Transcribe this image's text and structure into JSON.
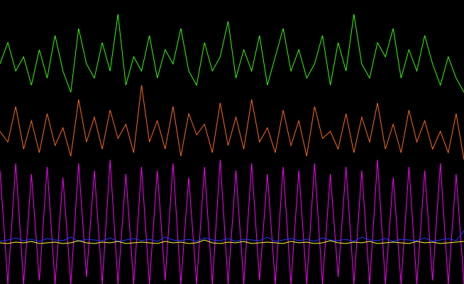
{
  "chart_data": {
    "type": "line",
    "x": [
      0,
      1,
      2,
      3,
      4,
      5,
      6,
      7,
      8,
      9,
      10,
      11,
      12,
      13,
      14,
      15,
      16,
      17,
      18,
      19,
      20,
      21,
      22,
      23,
      24,
      25,
      26,
      27,
      28,
      29,
      30,
      31,
      32,
      33,
      34,
      35,
      36,
      37,
      38,
      39,
      40,
      41,
      42,
      43,
      44,
      45,
      46,
      47,
      48,
      49,
      50,
      51,
      52,
      53,
      54,
      55,
      56,
      57,
      58,
      59
    ],
    "xlim": [
      0,
      59
    ],
    "ylim": [
      0,
      400
    ],
    "series": [
      {
        "color": "#ff00ff",
        "values": [
          160,
          0,
          170,
          0,
          155,
          5,
          165,
          0,
          150,
          0,
          170,
          10,
          160,
          0,
          175,
          0,
          155,
          0,
          165,
          0,
          160,
          5,
          170,
          0,
          150,
          0,
          165,
          0,
          175,
          0,
          160,
          0,
          170,
          5,
          155,
          0,
          165,
          0,
          160,
          0,
          170,
          0,
          155,
          10,
          165,
          0,
          160,
          0,
          175,
          0,
          150,
          0,
          165,
          0,
          160,
          5,
          170,
          0,
          155,
          0
        ]
      },
      {
        "color": "#1f3cff",
        "values": [
          60,
          62,
          65,
          61,
          63,
          60,
          64,
          62,
          61,
          66,
          60,
          63,
          62,
          61,
          65,
          60,
          62,
          64,
          61,
          63,
          60,
          66,
          62,
          61,
          63,
          60,
          65,
          62,
          61,
          64,
          60,
          63,
          62,
          61,
          66,
          60,
          62,
          64,
          61,
          63,
          60,
          65,
          62,
          61,
          63,
          60,
          66,
          62,
          61,
          64,
          60,
          63,
          62,
          61,
          65,
          60,
          62,
          64,
          61,
          75
        ]
      },
      {
        "color": "#ffff33",
        "values": [
          58,
          57,
          59,
          58,
          60,
          57,
          58,
          59,
          57,
          58,
          61,
          58,
          57,
          59,
          58,
          60,
          57,
          58,
          59,
          58,
          57,
          60,
          58,
          59,
          57,
          58,
          62,
          58,
          57,
          59,
          58,
          60,
          57,
          58,
          59,
          58,
          57,
          60,
          58,
          59,
          57,
          58,
          61,
          58,
          57,
          59,
          58,
          60,
          57,
          58,
          59,
          58,
          57,
          60,
          58,
          59,
          57,
          58,
          59,
          60
        ]
      },
      {
        "color": "#ff6a1a",
        "values": [
          215,
          200,
          250,
          190,
          230,
          185,
          240,
          195,
          220,
          180,
          260,
          200,
          235,
          190,
          245,
          205,
          225,
          185,
          280,
          200,
          230,
          190,
          250,
          180,
          240,
          210,
          225,
          185,
          255,
          195,
          235,
          190,
          260,
          200,
          220,
          185,
          245,
          195,
          230,
          180,
          250,
          205,
          215,
          190,
          240,
          185,
          235,
          200,
          255,
          190,
          225,
          185,
          245,
          200,
          230,
          190,
          215,
          185,
          240,
          175
        ]
      },
      {
        "color": "#33ff00",
        "values": [
          310,
          340,
          300,
          320,
          280,
          330,
          290,
          350,
          300,
          270,
          360,
          310,
          290,
          340,
          300,
          380,
          280,
          320,
          300,
          350,
          290,
          330,
          310,
          360,
          300,
          280,
          340,
          300,
          320,
          370,
          290,
          330,
          300,
          350,
          280,
          320,
          360,
          300,
          330,
          290,
          310,
          350,
          280,
          340,
          300,
          380,
          310,
          290,
          340,
          320,
          360,
          290,
          330,
          300,
          350,
          310,
          280,
          320,
          290,
          270
        ]
      }
    ]
  }
}
